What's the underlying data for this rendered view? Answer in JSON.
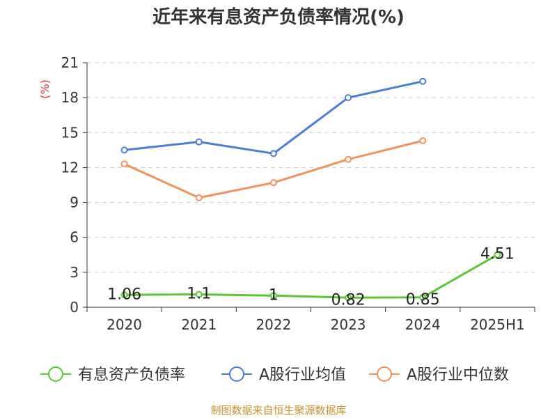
{
  "chart_data": {
    "type": "line",
    "title": "近年来有息资产负债率情况(%)",
    "ylabel": "(%)",
    "xlabel": "",
    "categories": [
      "2020",
      "2021",
      "2022",
      "2023",
      "2024",
      "2025H1"
    ],
    "ylim": [
      0,
      21
    ],
    "yticks": [
      0,
      3,
      6,
      9,
      12,
      15,
      18,
      21
    ],
    "grid": true,
    "legend_position": "bottom",
    "series": [
      {
        "name": "有息资产负债率",
        "color": "#5ac633",
        "values": [
          1.06,
          1.1,
          1,
          0.82,
          0.85,
          4.51
        ],
        "labels": [
          "1.06",
          "1.1",
          "1",
          "0.82",
          "0.85",
          "4.51"
        ]
      },
      {
        "name": "A股行业均值",
        "color": "#4a7fd8",
        "values": [
          13.5,
          14.2,
          13.2,
          18.0,
          19.4,
          null
        ]
      },
      {
        "name": "A股行业中位数",
        "color": "#f4905a",
        "values": [
          12.3,
          9.4,
          10.7,
          12.7,
          14.3,
          null
        ]
      }
    ]
  },
  "source": "制图数据来自恒生聚源数据库"
}
